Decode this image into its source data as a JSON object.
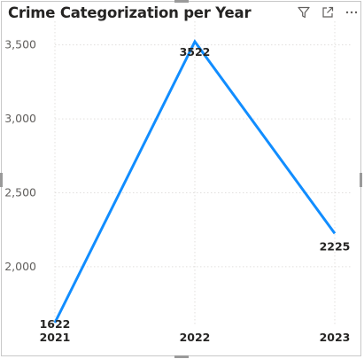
{
  "visual": {
    "title": "Crime Categorization per Year",
    "icons": [
      "filter-icon",
      "focus-mode-icon",
      "more-options-icon"
    ]
  },
  "chart_data": {
    "type": "line",
    "title": "Crime Categorization per Year",
    "xlabel": "",
    "ylabel": "",
    "categories": [
      "2021",
      "2022",
      "2023"
    ],
    "series": [
      {
        "values": [
          1622,
          3522,
          2225
        ],
        "color": "#118DFF"
      }
    ],
    "y_ticks": [
      2000,
      2500,
      3000,
      3500
    ],
    "y_tick_labels": [
      "2,000",
      "2,500",
      "3,000",
      "3,500"
    ],
    "ylim": [
      1622,
      3600
    ],
    "data_labels": [
      "1622",
      "3522",
      "2225"
    ],
    "grid": true
  }
}
